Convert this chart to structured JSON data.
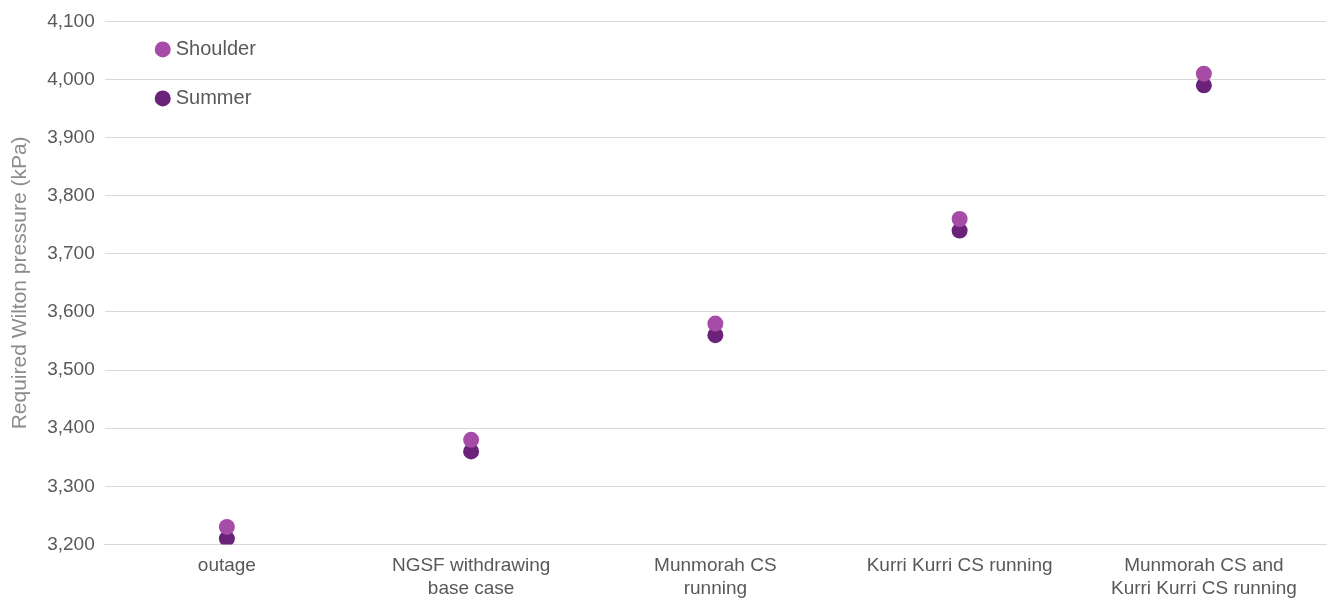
{
  "chart_data": {
    "type": "scatter",
    "ylabel": "Required Wilton pressure (kPa)",
    "categories": [
      "outage",
      "NGSF withdrawing base case",
      "Munmorah CS running",
      "Kurri Kurri CS running",
      "Munmorah CS and Kurri Kurri CS running"
    ],
    "series": [
      {
        "name": "Shoulder",
        "color": "#a64ca6",
        "values": [
          3230,
          3380,
          3580,
          3760,
          4010
        ]
      },
      {
        "name": "Summer",
        "color": "#6a2378",
        "values": [
          3210,
          3360,
          3560,
          3740,
          3990
        ]
      }
    ],
    "ylim": [
      3200,
      4100
    ],
    "yticks": [
      {
        "value": 3200,
        "label": "3,200"
      },
      {
        "value": 3300,
        "label": "3,300"
      },
      {
        "value": 3400,
        "label": "3,400"
      },
      {
        "value": 3500,
        "label": "3,500"
      },
      {
        "value": 3600,
        "label": "3,600"
      },
      {
        "value": 3700,
        "label": "3,700"
      },
      {
        "value": 3800,
        "label": "3,800"
      },
      {
        "value": 3900,
        "label": "3,900"
      },
      {
        "value": 4000,
        "label": "4,000"
      },
      {
        "value": 4100,
        "label": "4,100"
      }
    ],
    "grid": "y",
    "legend": "top left",
    "marker": "circle"
  }
}
